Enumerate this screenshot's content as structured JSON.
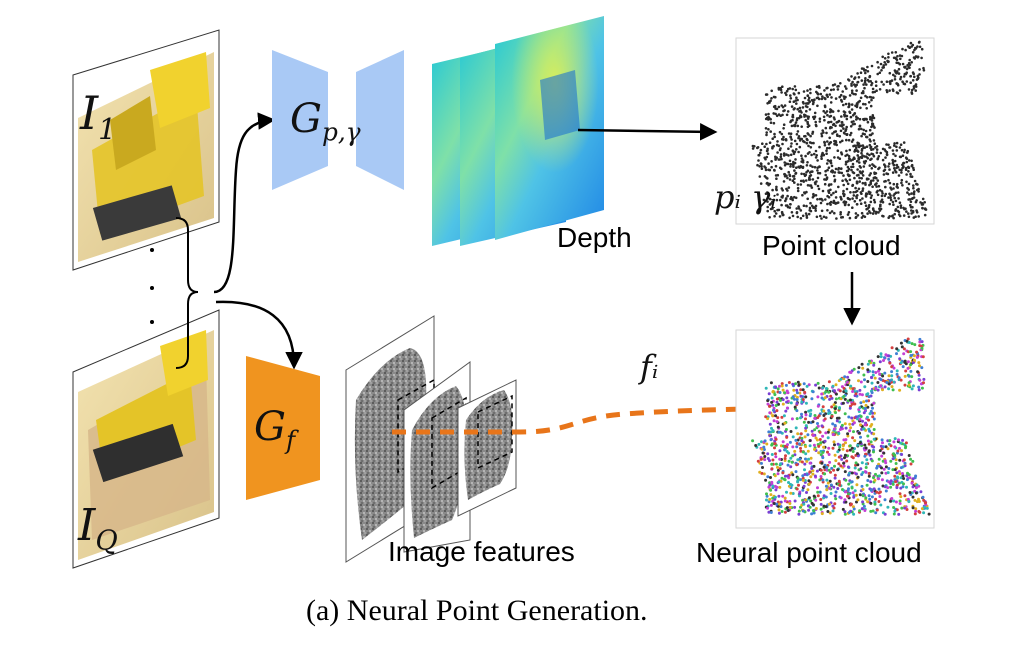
{
  "labels": {
    "input_first": {
      "base": "I",
      "sub": "1"
    },
    "input_last": {
      "base": "I",
      "sub": "Q"
    },
    "geometry_net": {
      "base": "G",
      "sub": "p,γ"
    },
    "feature_net": {
      "base": "G",
      "sub": "f"
    },
    "depth": "Depth",
    "point_cloud": "Point cloud",
    "point_attrs": "pᵢ γᵢ",
    "feature_attr": "fᵢ",
    "image_features": "Image features",
    "neural_point_cloud": "Neural point cloud"
  },
  "caption": "(a) Neural Point Generation.",
  "colors": {
    "geometry_net": "#a9c9f5",
    "feature_net": "#f0941f",
    "feature_flow": "#e8751a",
    "arrow": "#000000"
  }
}
